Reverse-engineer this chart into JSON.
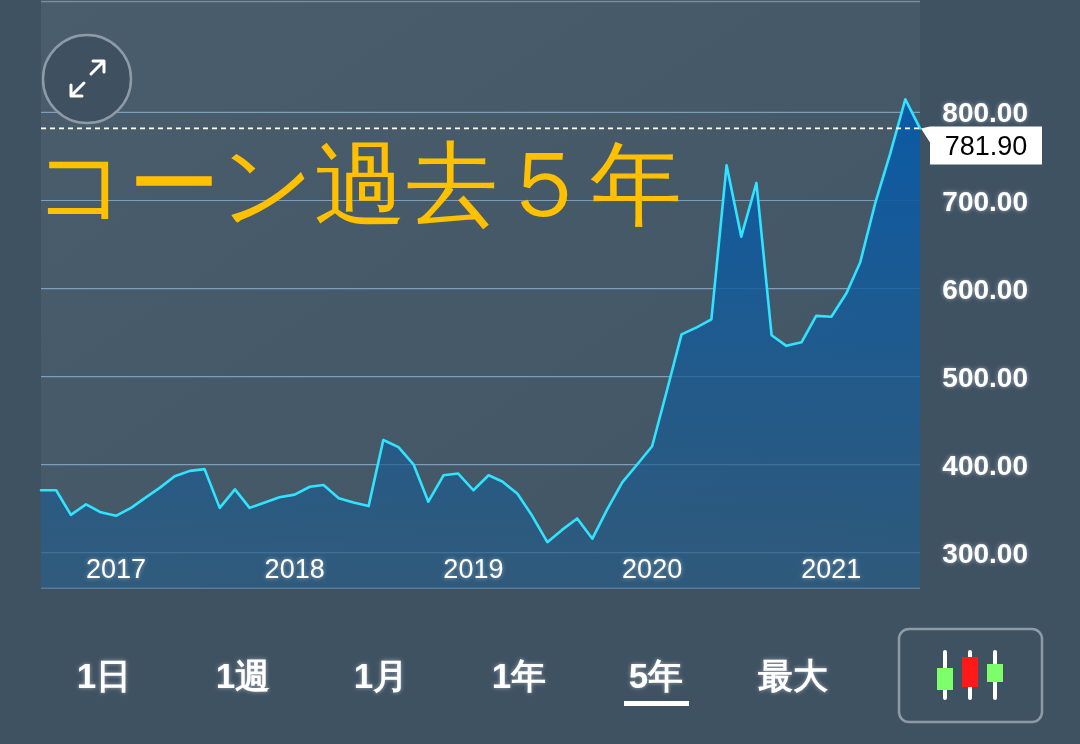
{
  "chart_data": {
    "type": "area",
    "title": "コーン過去５年",
    "x": [
      "2016-08",
      "2016-09",
      "2016-10",
      "2016-11",
      "2016-12",
      "2017-01",
      "2017-02",
      "2017-03",
      "2017-04",
      "2017-05",
      "2017-06",
      "2017-07",
      "2017-08",
      "2017-09",
      "2017-10",
      "2017-11",
      "2017-12",
      "2018-01",
      "2018-02",
      "2018-03",
      "2018-04",
      "2018-05",
      "2018-06",
      "2018-07",
      "2018-08",
      "2018-09",
      "2018-10",
      "2018-11",
      "2018-12",
      "2019-01",
      "2019-02",
      "2019-03",
      "2019-04",
      "2019-05",
      "2019-06",
      "2019-07",
      "2019-08",
      "2019-09",
      "2019-10",
      "2019-11",
      "2019-12",
      "2020-01",
      "2020-02",
      "2020-03",
      "2020-04",
      "2020-05",
      "2020-06",
      "2020-07",
      "2020-08",
      "2020-09",
      "2020-10",
      "2020-11",
      "2020-12",
      "2021-01",
      "2021-02",
      "2021-03",
      "2021-04",
      "2021-05",
      "2021-06",
      "2021-07"
    ],
    "series": [
      {
        "color": "#30e3ff",
        "values": [
          371,
          371,
          343,
          355,
          346,
          342,
          351,
          362,
          374,
          387,
          393,
          395,
          351,
          372,
          351,
          357,
          363,
          366,
          375,
          377,
          362,
          357,
          353,
          428,
          420,
          400,
          358,
          388,
          390,
          371,
          388,
          381,
          367,
          342,
          312,
          326,
          339,
          316,
          349,
          380,
          400,
          421,
          486,
          548,
          556,
          565,
          740,
          659,
          720,
          547,
          535,
          539,
          569,
          568,
          595,
          630,
          698,
          753,
          815,
          782
        ]
      }
    ],
    "xlim": [
      "2016-08",
      "2021-07"
    ],
    "xticks": [
      "2017",
      "2018",
      "2019",
      "2020",
      "2021"
    ],
    "ylim": [
      260,
      926
    ],
    "yticks": [
      {
        "value": 300,
        "label": "300.00"
      },
      {
        "value": 400,
        "label": "400.00"
      },
      {
        "value": 500,
        "label": "500.00"
      },
      {
        "value": 600,
        "label": "600.00"
      },
      {
        "value": 700,
        "label": "700.00"
      },
      {
        "value": 800,
        "label": "800.00"
      }
    ],
    "grid": "y",
    "ref_lines": [
      {
        "axis": "y",
        "value": 781.9,
        "label": "781.90",
        "color": "#ffffff",
        "line_style": "dashed"
      }
    ],
    "annotations": [
      "1日",
      "1週",
      "1月",
      "1年",
      "5年",
      "最大"
    ]
  }
}
